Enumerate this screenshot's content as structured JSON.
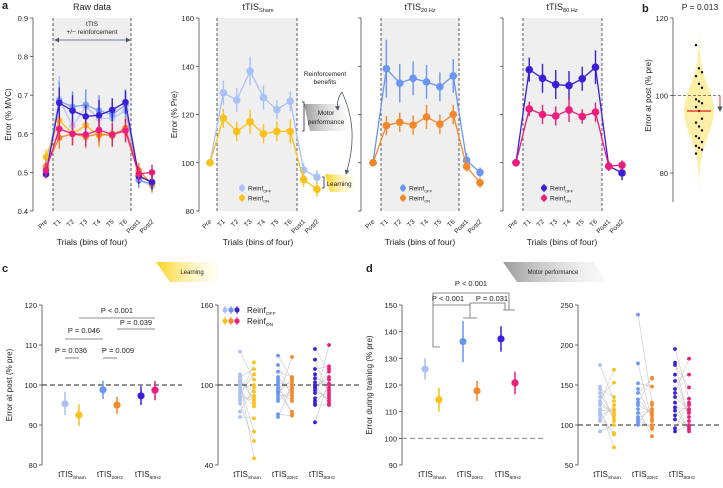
{
  "panel_labels": [
    "a",
    "b",
    "c",
    "d"
  ],
  "colors": {
    "off_sham": "#a9c1f6",
    "on_sham": "#fbc11a",
    "off_20": "#6a96f2",
    "on_20": "#f5872b",
    "off_80": "#3a1fd8",
    "on_80": "#ee1c7b",
    "shade": "#efefef",
    "median": "#e0201b",
    "violin": "#fdf0a6"
  },
  "annotations": {
    "ttis": "tTIS",
    "reinforcement": "+/− reinforcement",
    "reinf_benefits_1": "Reinforcement",
    "reinf_benefits_2": "benefits",
    "motor_1": "Motor",
    "motor_2": "performance",
    "learning": "Learning",
    "ribbon_learning": "Learning",
    "ribbon_motor": "Motor performance"
  },
  "legend": {
    "base": "Reinf",
    "off": "OFF",
    "on": "ON"
  },
  "chart_data": [
    {
      "panel": "a",
      "type": "line",
      "title": "Raw data",
      "xlabel": "Trials (bins of four)",
      "ylabel": "Error (% MVC)",
      "ylim": [
        0.4,
        0.9
      ],
      "yticks": [
        "0.4",
        "0.5",
        "0.6",
        "0.7",
        "0.8",
        "0.9"
      ],
      "categories": [
        "Pre",
        "T1",
        "T2",
        "T3",
        "T4",
        "T5",
        "T6",
        "Post1",
        "Post2"
      ],
      "shaded": [
        "T1",
        "T6"
      ],
      "series": [
        {
          "color": "#a9c1f6",
          "values": [
            0.51,
            0.69,
            0.62,
            0.67,
            0.64,
            0.64,
            0.66,
            0.48,
            0.465
          ],
          "err": [
            0.01,
            0.06,
            0.04,
            0.04,
            0.04,
            0.03,
            0.04,
            0.02,
            0.02
          ]
        },
        {
          "color": "#6a96f2",
          "values": [
            0.5,
            0.685,
            0.67,
            0.675,
            0.66,
            0.65,
            0.675,
            0.48,
            0.47
          ],
          "err": [
            0.01,
            0.05,
            0.04,
            0.04,
            0.04,
            0.03,
            0.04,
            0.02,
            0.02
          ]
        },
        {
          "color": "#fbc11a",
          "values": [
            0.54,
            0.635,
            0.6,
            0.622,
            0.595,
            0.6,
            0.61,
            0.495,
            0.47
          ],
          "err": [
            0.02,
            0.03,
            0.03,
            0.03,
            0.03,
            0.03,
            0.03,
            0.02,
            0.02
          ]
        },
        {
          "color": "#f5872b",
          "values": [
            0.515,
            0.59,
            0.6,
            0.592,
            0.6,
            0.595,
            0.615,
            0.505,
            0.47
          ],
          "err": [
            0.02,
            0.03,
            0.03,
            0.03,
            0.03,
            0.03,
            0.03,
            0.02,
            0.02
          ]
        },
        {
          "color": "#3a1fd8",
          "values": [
            0.495,
            0.68,
            0.66,
            0.645,
            0.648,
            0.662,
            0.682,
            0.49,
            0.475
          ],
          "err": [
            0.01,
            0.04,
            0.04,
            0.03,
            0.04,
            0.03,
            0.03,
            0.02,
            0.02
          ]
        },
        {
          "color": "#ee1c7b",
          "values": [
            0.505,
            0.613,
            0.6,
            0.598,
            0.61,
            0.598,
            0.608,
            0.496,
            0.5
          ],
          "err": [
            0.02,
            0.03,
            0.03,
            0.03,
            0.03,
            0.03,
            0.03,
            0.02,
            0.02
          ]
        }
      ]
    },
    {
      "panel": "a",
      "type": "line",
      "title": "tTIS",
      "title_sub": "Sham",
      "xlabel": "Trials (bins of four)",
      "ylabel": "Error (% Pre)",
      "ylim": [
        80,
        160
      ],
      "yticks": [
        "80",
        "100",
        "120",
        "140",
        "160"
      ],
      "categories": [
        "Pre",
        "T1",
        "T2",
        "T3",
        "T4",
        "T5",
        "T6",
        "Post1",
        "Post2"
      ],
      "shaded": [
        "T1",
        "T6"
      ],
      "series": [
        {
          "name": "Reinf OFF",
          "color": "#a9c1f6",
          "values": [
            100,
            129,
            126,
            138,
            127,
            122,
            125.5,
            97,
            94
          ],
          "err": [
            0,
            5,
            5,
            6,
            5,
            4,
            4,
            3,
            3
          ]
        },
        {
          "name": "Reinf ON",
          "color": "#fbc11a",
          "values": [
            100,
            118.5,
            113,
            117,
            112,
            113,
            113,
            93,
            89
          ],
          "err": [
            0,
            4,
            4,
            5,
            4,
            4,
            5,
            3,
            3
          ]
        }
      ]
    },
    {
      "panel": "a",
      "type": "line",
      "title": "tTIS",
      "title_sub": "20 Hz",
      "xlabel": "Trials (bins of four)",
      "ylim": [
        80,
        160
      ],
      "categories": [
        "Pre",
        "T1",
        "T2",
        "T3",
        "T4",
        "T5",
        "T6",
        "Post1",
        "Post2"
      ],
      "shaded": [
        "T1",
        "T6"
      ],
      "series": [
        {
          "name": "Reinf OFF",
          "color": "#6a96f2",
          "values": [
            100,
            139,
            133,
            135,
            133.5,
            131.5,
            136,
            101,
            96
          ],
          "err": [
            0,
            12,
            8,
            7,
            7,
            6,
            7,
            3,
            2
          ]
        },
        {
          "name": "Reinf ON",
          "color": "#f5872b",
          "values": [
            100,
            115.4,
            116.8,
            115.6,
            119,
            116,
            120,
            98.4,
            91.7
          ],
          "err": [
            0,
            4,
            4,
            4,
            5,
            4,
            4,
            2,
            2
          ]
        }
      ]
    },
    {
      "panel": "a",
      "type": "line",
      "title": "tTIS",
      "title_sub": "80 Hz",
      "xlabel": "Trials (bins of four)",
      "ylim": [
        80,
        160
      ],
      "categories": [
        "Pre",
        "T1",
        "T2",
        "T3",
        "T4",
        "T5",
        "T6",
        "Post1",
        "Post2"
      ],
      "shaded": [
        "T1",
        "T6"
      ],
      "series": [
        {
          "name": "Reinf OFF",
          "color": "#3a1fd8",
          "values": [
            100,
            138.6,
            135,
            132.4,
            132,
            134.8,
            139.6,
            98.6,
            95.8
          ],
          "err": [
            0,
            5,
            6,
            6,
            6,
            5,
            7,
            2,
            3
          ]
        },
        {
          "name": "Reinf ON",
          "color": "#ee1c7b",
          "values": [
            100,
            122.3,
            120,
            119.4,
            121.9,
            119.2,
            121,
            98.6,
            99
          ],
          "err": [
            0,
            3,
            4,
            4,
            5,
            3,
            4,
            2,
            2
          ]
        }
      ]
    },
    {
      "panel": "b",
      "type": "violin",
      "title": "P = 0.013",
      "ylabel": "Error at post (% pre)",
      "ylim": [
        75,
        120
      ],
      "yticks": [
        "80",
        "100",
        "120"
      ],
      "reference": 100,
      "median": 96,
      "points": [
        113,
        107,
        106,
        105,
        103,
        102,
        99,
        98.5,
        98,
        97,
        96,
        94,
        93,
        92,
        91,
        89.5,
        89,
        88,
        87,
        86.5,
        86,
        85
      ]
    },
    {
      "panel": "c",
      "type": "errorbar",
      "ylabel": "Error at post (% pre)",
      "ylim": [
        80,
        120
      ],
      "yticks": [
        "80",
        "90",
        "100",
        "110",
        "120"
      ],
      "reference": 100,
      "groups": [
        {
          "label": "tTIS",
          "sub": "Sham"
        },
        {
          "label": "tTIS",
          "sub": "20Hz"
        },
        {
          "label": "tTIS",
          "sub": "80Hz"
        }
      ],
      "series": [
        {
          "colors": [
            "#a9c1f6",
            "#6a96f2",
            "#3a1fd8"
          ],
          "values": [
            95.3,
            98.8,
            97.3
          ],
          "ci": [
            [
              92.5,
              98.3
            ],
            [
              96.5,
              101
            ],
            [
              95,
              99.7
            ]
          ]
        },
        {
          "colors": [
            "#fbc11a",
            "#f5872b",
            "#ee1c7b"
          ],
          "values": [
            92.5,
            95,
            98.7
          ],
          "ci": [
            [
              89.8,
              95.2
            ],
            [
              92.8,
              97
            ],
            [
              96.2,
              101
            ]
          ]
        }
      ],
      "comparisons": [
        {
          "text": "P = 0.036",
          "a": [
            0,
            0
          ],
          "b": [
            0,
            1
          ]
        },
        {
          "text": "P = 0.009",
          "a": [
            1,
            0
          ],
          "b": [
            1,
            1
          ]
        },
        {
          "text": "P = 0.046",
          "a": [
            0,
            0
          ],
          "b": [
            1,
            0
          ]
        },
        {
          "text": "P < 0.001",
          "a": [
            0,
            1
          ],
          "b": [
            2,
            1
          ]
        },
        {
          "text": "P = 0.039",
          "a": [
            1,
            1
          ],
          "b": [
            2,
            1
          ]
        }
      ]
    },
    {
      "panel": "c",
      "type": "paired-scatter",
      "ylim": [
        40,
        160
      ],
      "yticks": [
        "40",
        "100",
        "160"
      ],
      "reference": 100,
      "groups": [
        {
          "label": "tTIS",
          "sub": "Sham"
        },
        {
          "label": "tTIS",
          "sub": "20Hz"
        },
        {
          "label": "tTIS",
          "sub": "80Hz"
        }
      ],
      "off": [
        [
          125,
          108,
          106,
          104,
          103,
          102,
          100,
          98,
          96,
          94,
          92,
          90,
          88,
          86,
          80,
          76
        ],
        [
          122,
          115,
          110,
          106,
          104,
          102,
          100,
          98,
          96,
          94,
          92,
          90,
          88,
          78,
          76,
          95
        ],
        [
          127,
          119,
          112,
          108,
          105,
          102,
          100,
          98,
          96,
          94,
          90,
          88,
          86,
          85,
          72,
          99
        ]
      ],
      "on": [
        [
          117,
          112,
          108,
          104,
          100,
          98,
          95,
          92,
          90,
          88,
          86,
          84,
          75,
          65,
          58,
          45
        ],
        [
          121,
          106,
          105,
          104,
          102,
          100,
          98,
          96,
          94,
          92,
          90,
          88,
          80,
          78,
          77,
          97
        ],
        [
          130,
          114,
          112,
          110,
          106,
          104,
          100,
          98,
          96,
          94,
          92,
          90,
          88,
          86,
          85,
          101
        ]
      ]
    },
    {
      "panel": "d",
      "type": "errorbar",
      "ylabel": "Error during training  (% pre)",
      "ylim": [
        90,
        150
      ],
      "yticks": [
        "90",
        "100",
        "110",
        "120",
        "130",
        "140",
        "150"
      ],
      "reference": 100,
      "groups": [
        {
          "label": "tTIS",
          "sub": "Sham"
        },
        {
          "label": "tTIS",
          "sub": "20Hz"
        },
        {
          "label": "tTIS",
          "sub": "80Hz"
        }
      ],
      "series": [
        {
          "colors": [
            "#a9c1f6",
            "#6a96f2",
            "#3a1fd8"
          ],
          "values": [
            126,
            136.3,
            137.3
          ],
          "ci": [
            [
              122,
              130
            ],
            [
              128.5,
              144
            ],
            [
              132.5,
              142
            ]
          ]
        },
        {
          "colors": [
            "#fbc11a",
            "#f5872b",
            "#ee1c7b"
          ],
          "values": [
            114.5,
            117.8,
            120.8
          ],
          "ci": [
            [
              110,
              119
            ],
            [
              114,
              121.5
            ],
            [
              116.5,
              125
            ]
          ]
        }
      ],
      "comparisons": [
        {
          "text": "P < 0.001"
        },
        {
          "text": "P < 0.001"
        },
        {
          "text": "P = 0.031"
        }
      ]
    },
    {
      "panel": "d",
      "type": "paired-scatter",
      "ylim": [
        50,
        250
      ],
      "yticks": [
        "50",
        "100",
        "150",
        "200",
        "250"
      ],
      "reference": 100,
      "groups": [
        {
          "label": "tTIS",
          "sub": "Sham"
        },
        {
          "label": "tTIS",
          "sub": "20Hz"
        },
        {
          "label": "tTIS",
          "sub": "80Hz"
        }
      ],
      "off": [
        [
          175,
          148,
          145,
          140,
          135,
          130,
          128,
          125,
          120,
          118,
          115,
          112,
          108,
          105,
          92
        ],
        [
          238,
          177,
          152,
          145,
          140,
          132,
          128,
          125,
          120,
          115,
          110,
          108,
          105,
          102,
          100
        ],
        [
          195,
          178,
          175,
          163,
          155,
          145,
          140,
          135,
          128,
          122,
          118,
          112,
          107,
          96,
          92
        ]
      ],
      "on": [
        [
          169,
          153,
          135,
          130,
          125,
          120,
          118,
          115,
          112,
          108,
          105,
          100,
          90,
          88,
          72
        ],
        [
          159,
          158,
          148,
          128,
          125,
          120,
          118,
          115,
          112,
          108,
          105,
          100,
          97,
          95,
          86
        ],
        [
          183,
          163,
          147,
          133,
          128,
          125,
          120,
          118,
          115,
          110,
          105,
          100,
          98,
          95,
          92
        ]
      ]
    }
  ]
}
